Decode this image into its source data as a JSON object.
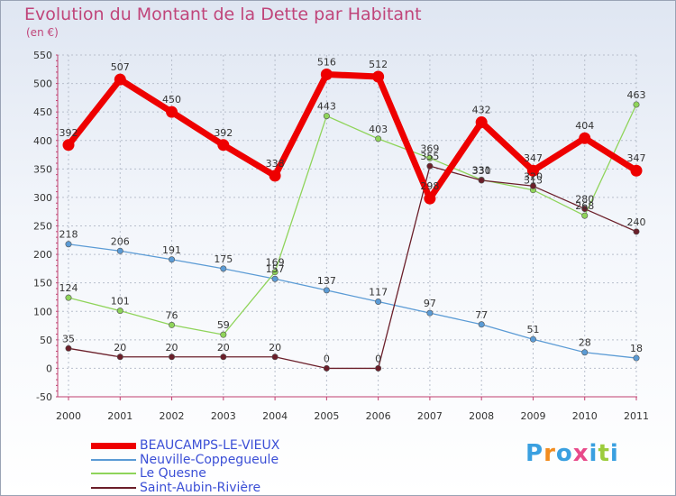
{
  "chart_data": {
    "type": "line",
    "title": "Evolution du Montant de la Dette par Habitant",
    "subtitle": "(en €)",
    "x": [
      "2000",
      "2001",
      "2002",
      "2003",
      "2004",
      "2005",
      "2006",
      "2007",
      "2008",
      "2009",
      "2010",
      "2011"
    ],
    "ylim": [
      -50,
      550
    ],
    "yticks": [
      -50,
      0,
      50,
      100,
      150,
      200,
      250,
      300,
      350,
      400,
      450,
      500,
      550
    ],
    "grid": true,
    "legend_position": "bottom-left",
    "series": [
      {
        "name": "BEAUCAMPS-LE-VIEUX",
        "color": "#ee0000",
        "values": [
          392,
          507,
          450,
          392,
          338,
          516,
          512,
          298,
          432,
          347,
          404,
          347
        ]
      },
      {
        "name": "Neuville-Coppegueule",
        "color": "#5b9bd5",
        "values": [
          218,
          206,
          191,
          175,
          157,
          137,
          117,
          97,
          77,
          51,
          28,
          18
        ]
      },
      {
        "name": "Le Quesne",
        "color": "#8fd45a",
        "values": [
          124,
          101,
          76,
          59,
          169,
          443,
          403,
          369,
          331,
          313,
          268,
          463
        ]
      },
      {
        "name": "Saint-Aubin-Rivière",
        "color": "#6b1f2a",
        "values": [
          35,
          20,
          20,
          20,
          20,
          0,
          0,
          355,
          330,
          320,
          280,
          240
        ]
      }
    ]
  },
  "brand": {
    "letters": [
      "P",
      "r",
      "o",
      "x",
      "i",
      "t",
      "i"
    ],
    "colors": [
      "#3aa0e0",
      "#f28c1e",
      "#3aa0e0",
      "#e84a8a",
      "#3aa0e0",
      "#9ccc3c",
      "#3aa0e0"
    ]
  }
}
